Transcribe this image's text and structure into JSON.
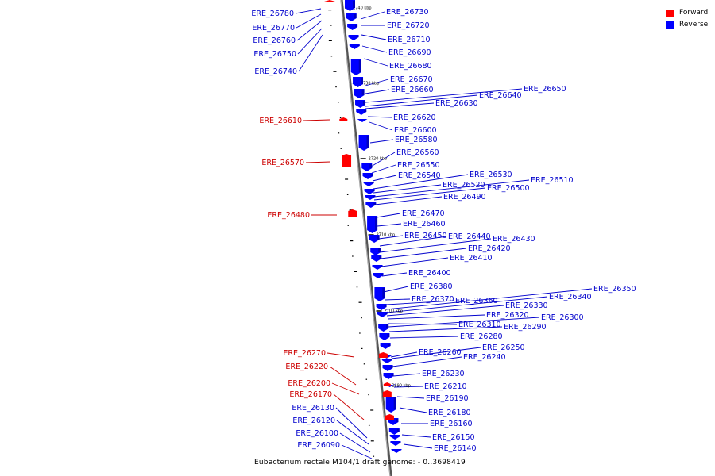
{
  "legend": {
    "forward": {
      "label": "Forward",
      "color": "#ff0000"
    },
    "reverse": {
      "label": "Reverse",
      "color": "#0000ff"
    }
  },
  "caption": "Eubacterium rectale M104/1 draft genome: - 0..3698419",
  "ticks": [
    "2740 kbp",
    "2730 kbp",
    "2720 kbp",
    "2710 kbp",
    "2700 kbp",
    "2690 kbp"
  ],
  "forward_labels": [
    "ERE_26610",
    "ERE_26570",
    "ERE_26480",
    "ERE_26270",
    "ERE_26220",
    "ERE_26200",
    "ERE_26170"
  ],
  "reverse_left_labels": [
    "ERE_26780",
    "ERE_26770",
    "ERE_26760",
    "ERE_26750",
    "ERE_26740",
    "ERE_26130",
    "ERE_26120",
    "ERE_26100",
    "ERE_26090"
  ],
  "reverse_right_labels": [
    "ERE_26730",
    "ERE_26720",
    "ERE_26710",
    "ERE_26690",
    "ERE_26680",
    "ERE_26670",
    "ERE_26660",
    "ERE_26650",
    "ERE_26640",
    "ERE_26630",
    "ERE_26620",
    "ERE_26600",
    "ERE_26580",
    "ERE_26560",
    "ERE_26550",
    "ERE_26540",
    "ERE_26530",
    "ERE_26520",
    "ERE_26510",
    "ERE_26500",
    "ERE_26490",
    "ERE_26470",
    "ERE_26460",
    "ERE_26450",
    "ERE_26440",
    "ERE_26430",
    "ERE_26420",
    "ERE_26410",
    "ERE_26400",
    "ERE_26380",
    "ERE_26370",
    "ERE_26360",
    "ERE_26350",
    "ERE_26340",
    "ERE_26330",
    "ERE_26320",
    "ERE_26310",
    "ERE_26300",
    "ERE_26290",
    "ERE_26280",
    "ERE_26260",
    "ERE_26250",
    "ERE_26240",
    "ERE_26230",
    "ERE_26210",
    "ERE_26190",
    "ERE_26180",
    "ERE_26160",
    "ERE_26150",
    "ERE_26140"
  ]
}
